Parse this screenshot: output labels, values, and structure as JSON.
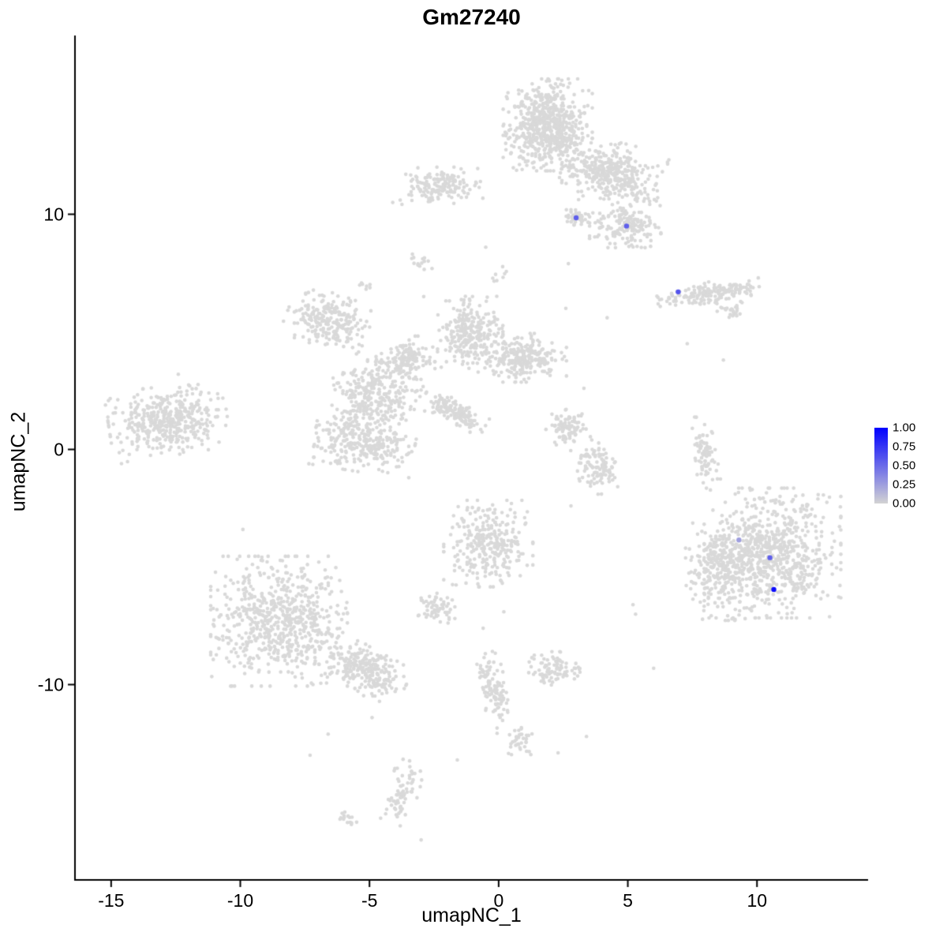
{
  "chart_data": {
    "type": "scatter",
    "title": "Gm27240",
    "xlabel": "umapNC_1",
    "ylabel": "umapNC_2",
    "xlim": [
      -16.4,
      14.3
    ],
    "ylim": [
      -18.3,
      17.6
    ],
    "x_ticks": [
      -15,
      -10,
      -5,
      0,
      5,
      10
    ],
    "y_ticks": [
      -10,
      0,
      10
    ],
    "grid": false,
    "background_color": "#ffffff",
    "axis_color": "#000000",
    "point_color": "#d9d9d9",
    "low_color": "#d3d3d3",
    "high_color": "#0000ff",
    "legend": {
      "position": "right",
      "ticks": [
        "1.00",
        "0.75",
        "0.50",
        "0.25",
        "0.00"
      ]
    },
    "clusters": [
      {
        "cx": 1.9,
        "cy": 13.8,
        "rx": 1.5,
        "ry": 1.7,
        "angle": 0,
        "n": 650
      },
      {
        "cx": 4.4,
        "cy": 11.7,
        "rx": 1.7,
        "ry": 1.2,
        "angle": -15,
        "n": 380
      },
      {
        "cx": -2.2,
        "cy": 11.2,
        "rx": 1.4,
        "ry": 0.7,
        "angle": 0,
        "n": 160
      },
      {
        "cx": 4.9,
        "cy": 9.5,
        "rx": 1.2,
        "ry": 0.8,
        "angle": 0,
        "n": 170
      },
      {
        "cx": 3.05,
        "cy": 9.85,
        "rx": 0.4,
        "ry": 0.3,
        "angle": 0,
        "n": 45
      },
      {
        "cx": 8.2,
        "cy": 6.65,
        "rx": 1.8,
        "ry": 0.45,
        "angle": 8,
        "n": 170
      },
      {
        "cx": 9.0,
        "cy": 5.9,
        "rx": 0.6,
        "ry": 0.3,
        "angle": 0,
        "n": 25
      },
      {
        "cx": -6.6,
        "cy": 5.5,
        "rx": 1.4,
        "ry": 1.0,
        "angle": -20,
        "n": 240
      },
      {
        "cx": -1.1,
        "cy": 4.9,
        "rx": 1.1,
        "ry": 1.4,
        "angle": 0,
        "n": 260
      },
      {
        "cx": -4.7,
        "cy": 2.3,
        "rx": 1.5,
        "ry": 1.3,
        "angle": 30,
        "n": 300
      },
      {
        "cx": 0.9,
        "cy": 3.9,
        "rx": 1.5,
        "ry": 0.9,
        "angle": 0,
        "n": 260
      },
      {
        "cx": -1.7,
        "cy": 1.6,
        "rx": 1.3,
        "ry": 0.45,
        "angle": -35,
        "n": 130
      },
      {
        "cx": -3.5,
        "cy": 3.9,
        "rx": 0.9,
        "ry": 0.8,
        "angle": 0,
        "n": 130
      },
      {
        "cx": -12.8,
        "cy": 1.2,
        "rx": 2.0,
        "ry": 1.3,
        "angle": 8,
        "n": 420
      },
      {
        "cx": -5.2,
        "cy": 0.3,
        "rx": 1.7,
        "ry": 1.1,
        "angle": -10,
        "n": 300
      },
      {
        "cx": 2.6,
        "cy": 0.9,
        "rx": 0.8,
        "ry": 0.7,
        "angle": 0,
        "n": 90
      },
      {
        "cx": 3.8,
        "cy": -0.7,
        "rx": 0.7,
        "ry": 1.1,
        "angle": 15,
        "n": 110
      },
      {
        "cx": 8.0,
        "cy": -0.3,
        "rx": 0.4,
        "ry": 1.5,
        "angle": 10,
        "n": 85
      },
      {
        "cx": 10.6,
        "cy": -4.4,
        "rx": 2.3,
        "ry": 2.4,
        "angle": 0,
        "n": 750
      },
      {
        "cx": 8.5,
        "cy": -5.2,
        "rx": 1.1,
        "ry": 1.8,
        "angle": 0,
        "n": 260
      },
      {
        "cx": -0.4,
        "cy": -4.0,
        "rx": 1.5,
        "ry": 1.6,
        "angle": 0,
        "n": 300
      },
      {
        "cx": -8.5,
        "cy": -7.3,
        "rx": 2.3,
        "ry": 2.4,
        "angle": 0,
        "n": 680
      },
      {
        "cx": -5.2,
        "cy": -9.4,
        "rx": 1.5,
        "ry": 0.9,
        "angle": -25,
        "n": 260
      },
      {
        "cx": -2.5,
        "cy": -6.8,
        "rx": 0.7,
        "ry": 0.6,
        "angle": 0,
        "n": 60
      },
      {
        "cx": -0.2,
        "cy": -10.2,
        "rx": 0.5,
        "ry": 1.6,
        "angle": 15,
        "n": 110
      },
      {
        "cx": 2.2,
        "cy": -9.4,
        "rx": 0.9,
        "ry": 0.7,
        "angle": 0,
        "n": 90
      },
      {
        "cx": 0.9,
        "cy": -12.4,
        "rx": 0.5,
        "ry": 0.5,
        "angle": 0,
        "n": 35
      },
      {
        "cx": -3.7,
        "cy": -14.6,
        "rx": 0.5,
        "ry": 1.2,
        "angle": -15,
        "n": 75
      },
      {
        "cx": -5.9,
        "cy": -15.7,
        "rx": 0.5,
        "ry": 0.25,
        "angle": 0,
        "n": 15
      },
      {
        "cx": -3.1,
        "cy": 8.0,
        "rx": 0.5,
        "ry": 0.3,
        "angle": 0,
        "n": 14
      },
      {
        "cx": -5.1,
        "cy": 7.0,
        "rx": 0.3,
        "ry": 0.2,
        "angle": 0,
        "n": 7
      },
      {
        "cx": 0.1,
        "cy": 7.4,
        "rx": 0.3,
        "ry": 0.5,
        "angle": 0,
        "n": 8
      }
    ],
    "singles": [
      [
        -2.9,
        6.5
      ],
      [
        2.6,
        6.0
      ],
      [
        3.3,
        2.6
      ],
      [
        2.8,
        -2.4
      ],
      [
        -9.9,
        -3.4
      ],
      [
        -0.6,
        -7.6
      ],
      [
        5.3,
        -7.0
      ],
      [
        5.2,
        -6.6
      ],
      [
        7.7,
        -3.6
      ],
      [
        -4.9,
        -11.4
      ],
      [
        -1.6,
        -13.2
      ],
      [
        3.4,
        -12.2
      ],
      [
        2.3,
        -12.9
      ],
      [
        -7.3,
        -13.0
      ],
      [
        -3.0,
        -16.6
      ],
      [
        7.3,
        4.5
      ],
      [
        8.7,
        3.8
      ],
      [
        2.7,
        7.9
      ],
      [
        -0.5,
        8.6
      ],
      [
        4.2,
        5.6
      ],
      [
        -12.4,
        3.2
      ],
      [
        -14.6,
        -0.6
      ],
      [
        6.0,
        -9.3
      ],
      [
        0.2,
        -6.9
      ],
      [
        -6.6,
        -12.1
      ],
      [
        2.0,
        12.9
      ],
      [
        -4.1,
        10.5
      ]
    ],
    "expressing_cells": [
      {
        "x": 3.0,
        "y": 9.85,
        "value": 0.55
      },
      {
        "x": 4.95,
        "y": 9.5,
        "value": 0.55
      },
      {
        "x": 6.95,
        "y": 6.7,
        "value": 0.6
      },
      {
        "x": 9.3,
        "y": -3.85,
        "value": 0.25
      },
      {
        "x": 10.5,
        "y": -4.6,
        "value": 0.55
      },
      {
        "x": 10.65,
        "y": -5.95,
        "value": 0.95
      }
    ]
  }
}
